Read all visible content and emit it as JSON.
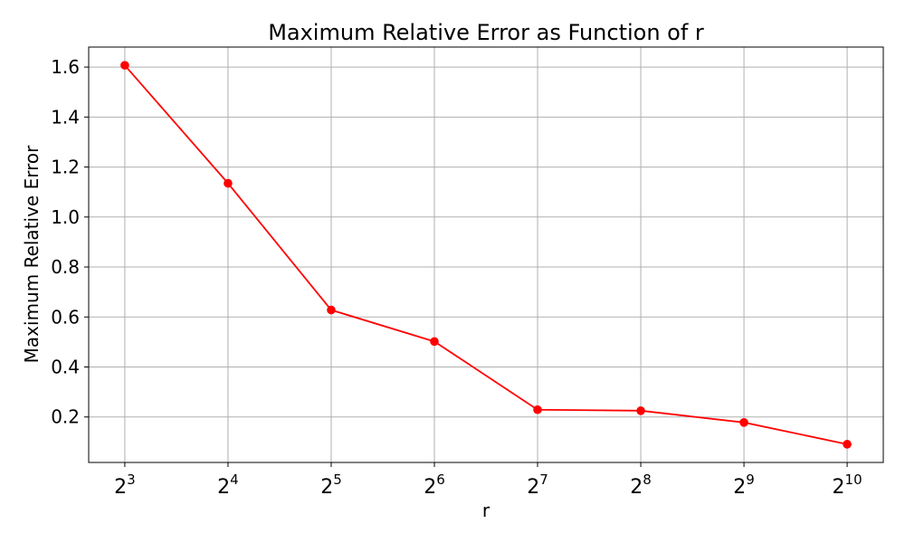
{
  "chart_data": {
    "type": "line",
    "title": "Maximum Relative Error as Function of r",
    "xlabel": "r",
    "ylabel": "Maximum Relative Error",
    "x_scale": "log2",
    "x": [
      8,
      16,
      32,
      64,
      128,
      256,
      512,
      1024
    ],
    "x_tick_labels": [
      {
        "base": "2",
        "exp": "3"
      },
      {
        "base": "2",
        "exp": "4"
      },
      {
        "base": "2",
        "exp": "5"
      },
      {
        "base": "2",
        "exp": "6"
      },
      {
        "base": "2",
        "exp": "7"
      },
      {
        "base": "2",
        "exp": "8"
      },
      {
        "base": "2",
        "exp": "9"
      },
      {
        "base": "2",
        "exp": "10"
      }
    ],
    "y_ticks": [
      0.2,
      0.4,
      0.6,
      0.8,
      1.0,
      1.2,
      1.4,
      1.6
    ],
    "y_tick_labels": [
      "0.2",
      "0.4",
      "0.6",
      "0.8",
      "1.0",
      "1.2",
      "1.4",
      "1.6"
    ],
    "ylim": [
      0.018,
      1.68
    ],
    "series": [
      {
        "values": [
          1.607,
          1.135,
          0.628,
          0.502,
          0.229,
          0.225,
          0.178,
          0.091
        ],
        "color": "#ff0000",
        "marker": "circle"
      }
    ],
    "grid": true,
    "grid_color": "#b0b0b0",
    "legend": "none"
  }
}
